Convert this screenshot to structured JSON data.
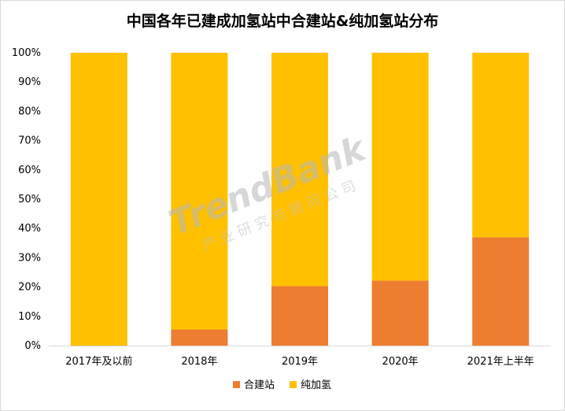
{
  "title": "中国各年已建成加氢站中合建站&纯加氢站分布",
  "colors": {
    "合建站": "#ED7D31",
    "纯加氢": "#FFC000"
  },
  "watermark": {
    "brand": "TrendBank",
    "sub": "产 业 研 究 与 顾 问 公 司"
  },
  "chart_data": {
    "type": "bar",
    "stacked": true,
    "categories": [
      "2017年及以前",
      "2018年",
      "2019年",
      "2020年",
      "2021年上半年"
    ],
    "series": [
      {
        "name": "合建站",
        "values": [
          0,
          5.5,
          20.3,
          22.2,
          37.0
        ]
      },
      {
        "name": "纯加氢",
        "values": [
          100,
          94.5,
          79.7,
          77.8,
          63.0
        ]
      }
    ],
    "ylim": [
      0,
      100
    ],
    "yticks": [
      "0%",
      "10%",
      "20%",
      "30%",
      "40%",
      "50%",
      "60%",
      "70%",
      "80%",
      "90%",
      "100%"
    ],
    "grid": false,
    "legend": "bottom"
  }
}
